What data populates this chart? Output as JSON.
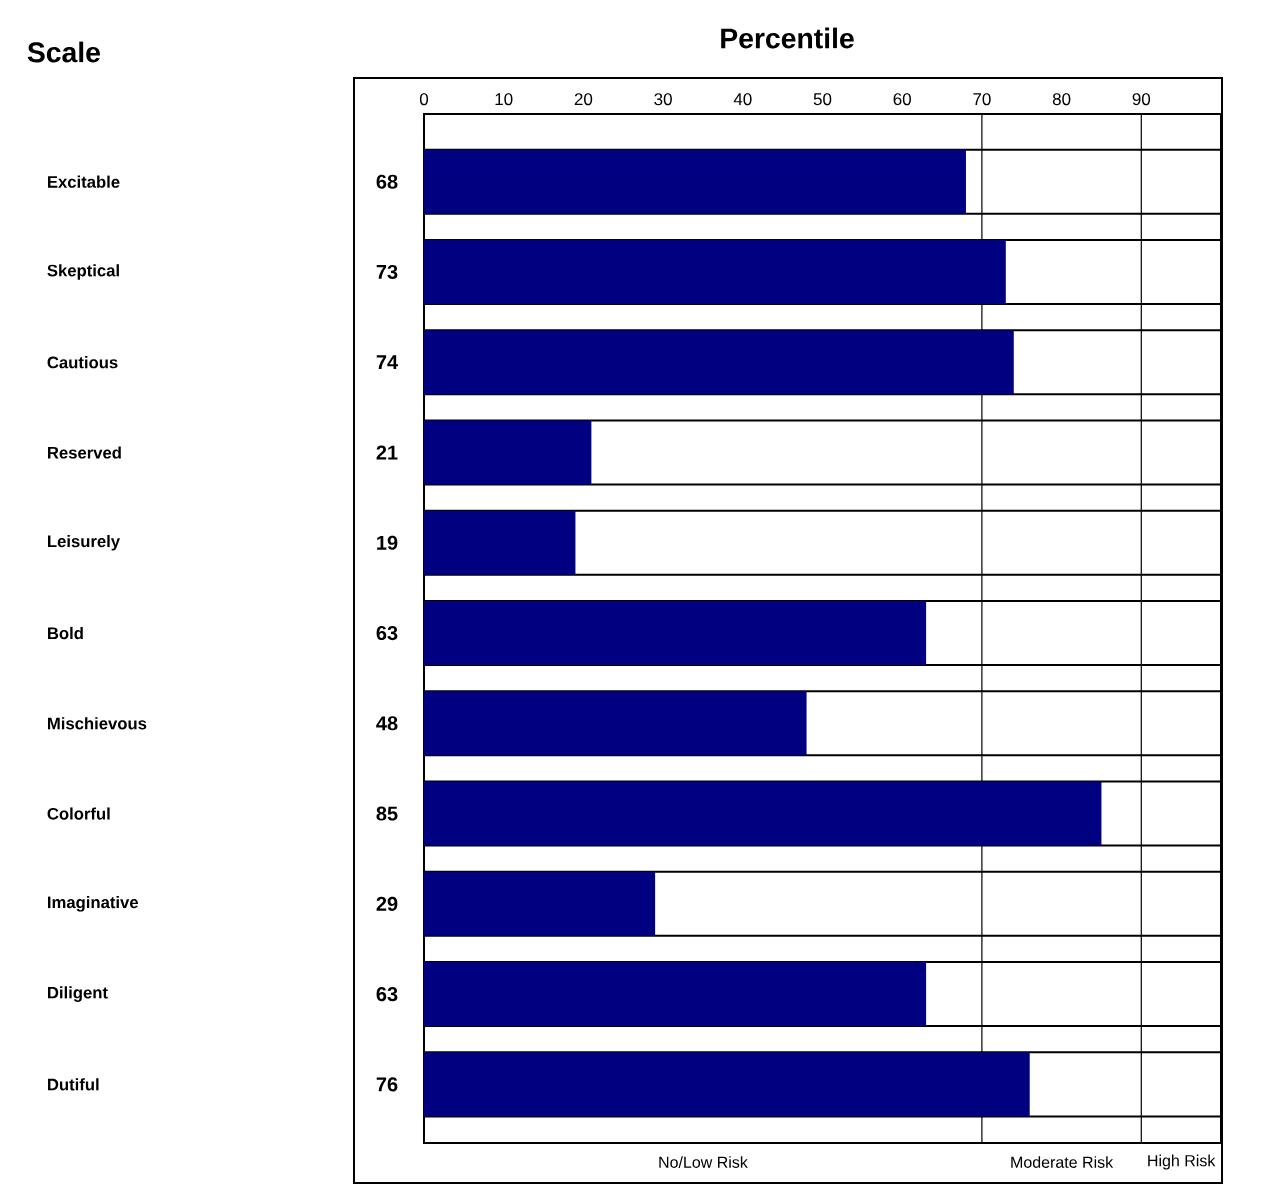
{
  "chart_data": {
    "type": "bar",
    "orientation": "horizontal",
    "title": "Percentile",
    "ylabel": "Scale",
    "categories": [
      "Excitable",
      "Skeptical",
      "Cautious",
      "Reserved",
      "Leisurely",
      "Bold",
      "Mischievous",
      "Colorful",
      "Imaginative",
      "Diligent",
      "Dutiful"
    ],
    "values": [
      68,
      73,
      74,
      21,
      19,
      63,
      48,
      85,
      29,
      63,
      76
    ],
    "color": "#000080",
    "x2lim": [
      0,
      100
    ],
    "x2ticks": [
      0,
      10,
      20,
      30,
      40,
      50,
      60,
      70,
      80,
      90
    ],
    "data_labels": true,
    "ref_lines": [
      {
        "axis": "x",
        "value": 70
      },
      {
        "axis": "x",
        "value": 90
      }
    ],
    "annotations": [
      "No/Low Risk",
      "Moderate Risk",
      "High Risk"
    ]
  }
}
